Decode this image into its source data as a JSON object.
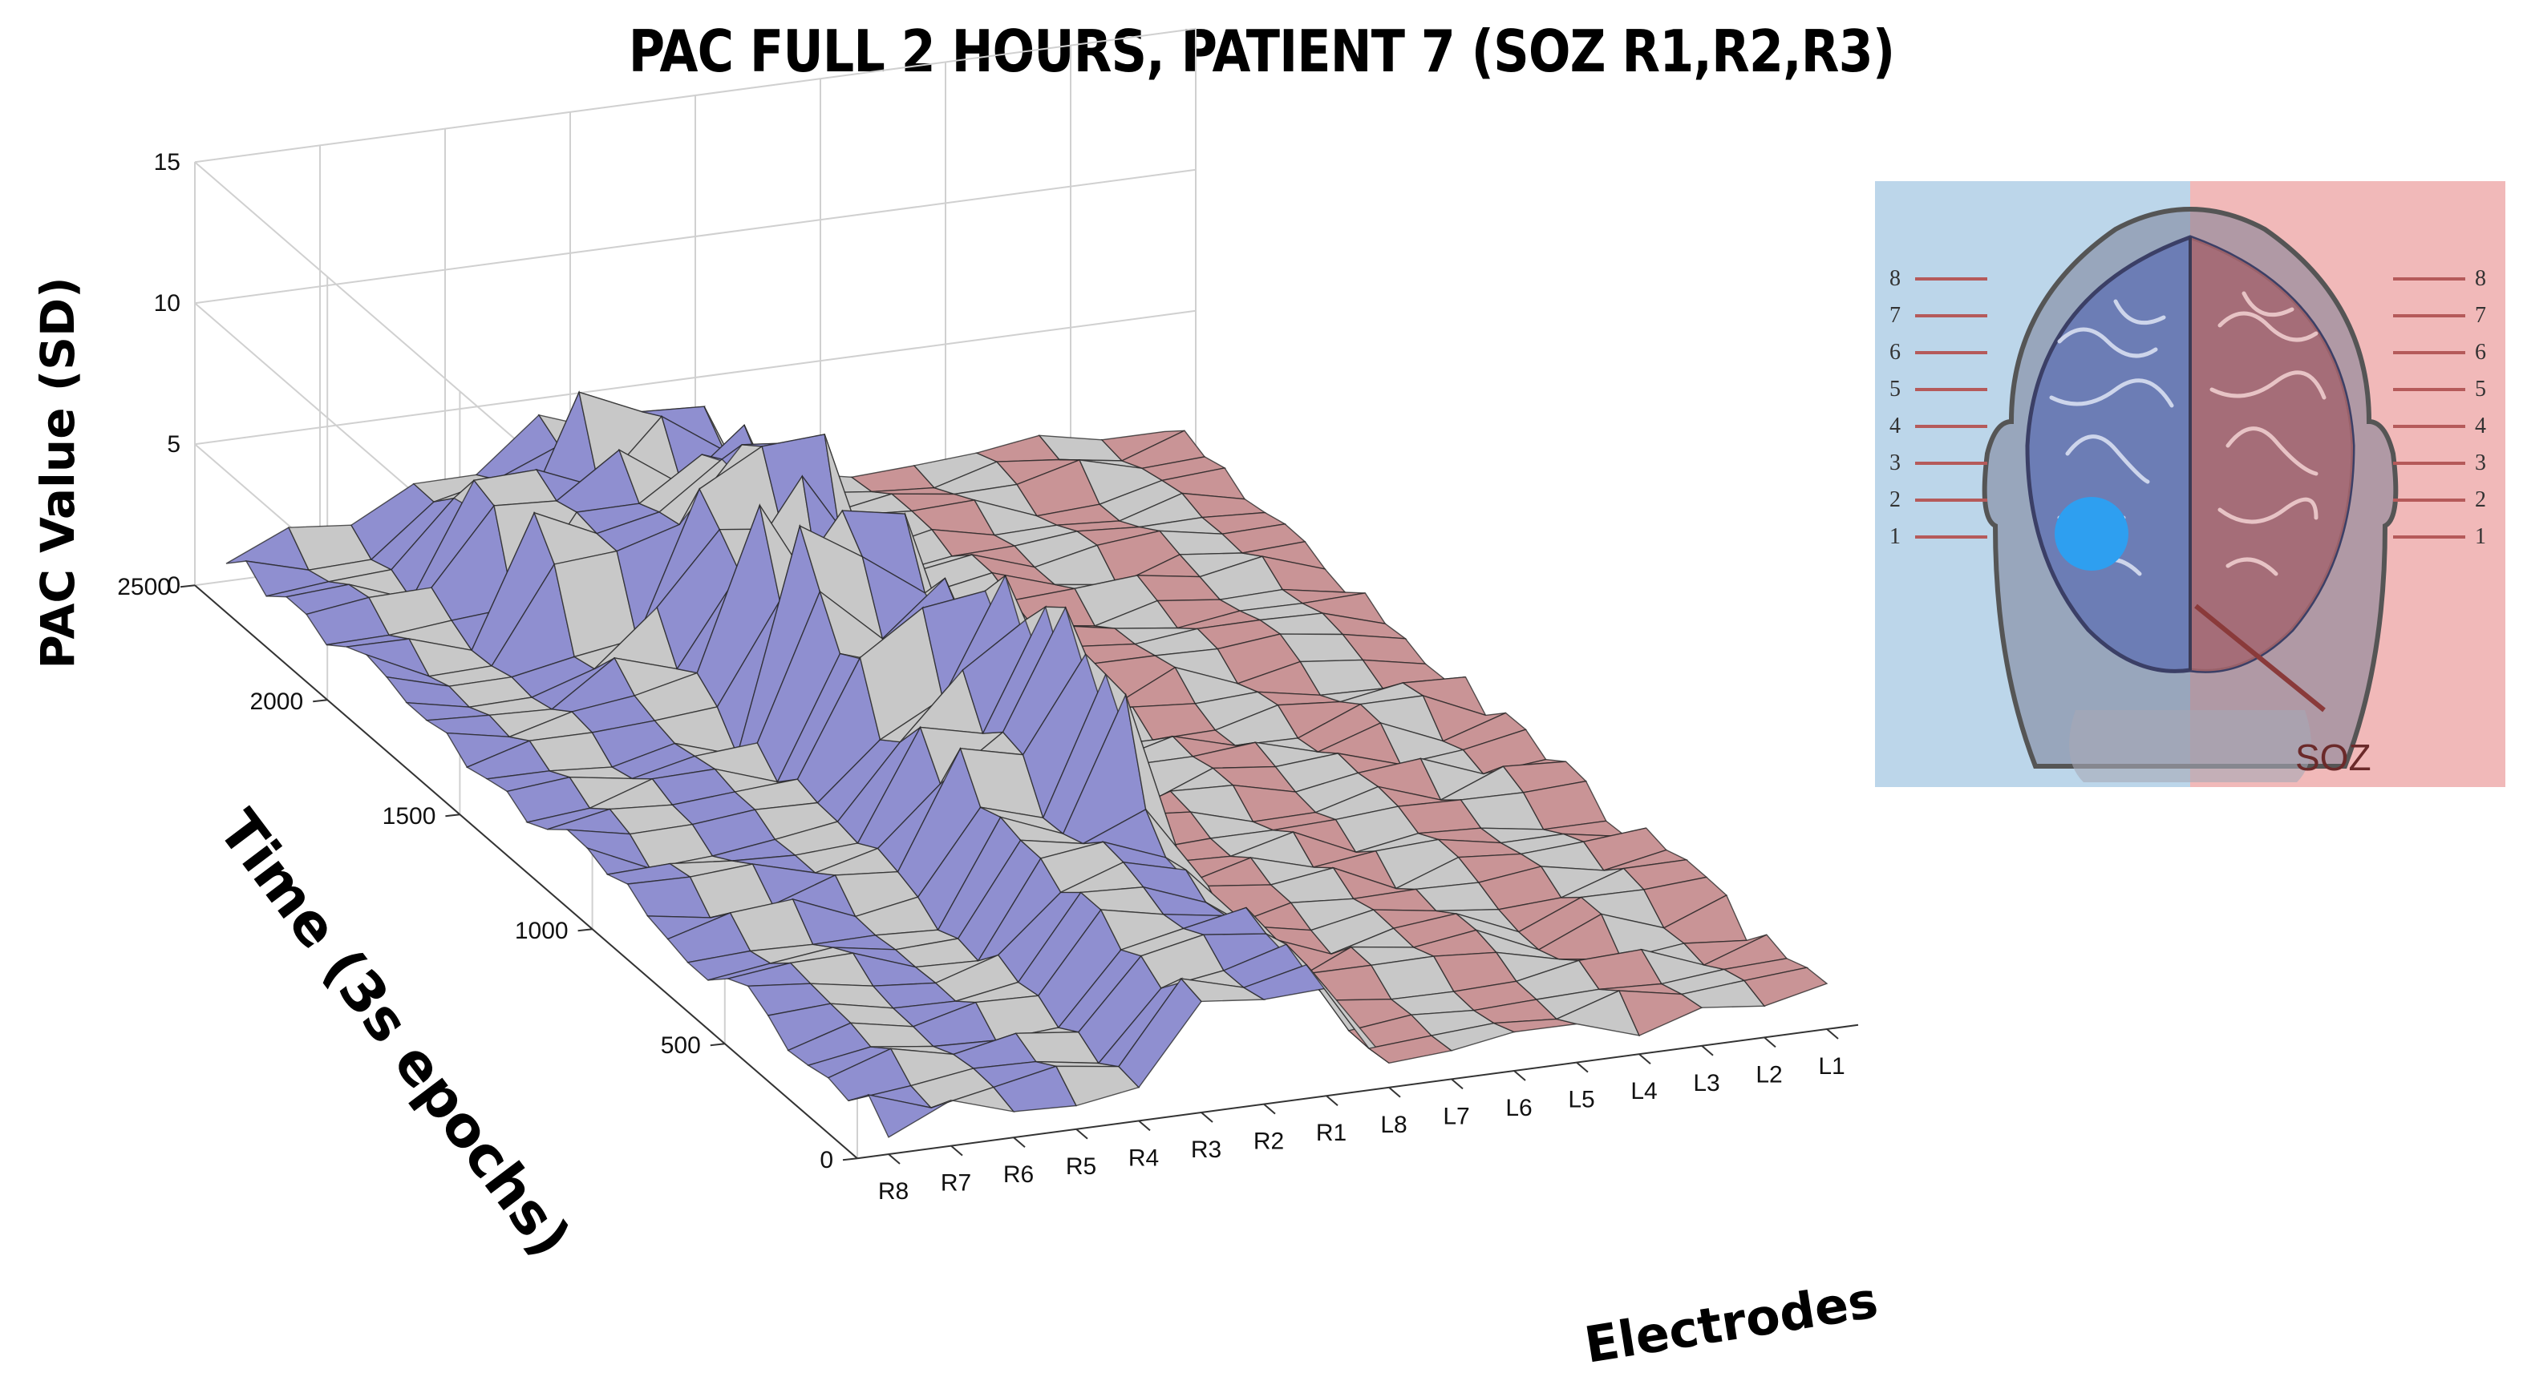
{
  "title": "PAC FULL 2 HOURS, PATIENT 7 (SOZ R1,R2,R3)",
  "chart_data": {
    "type": "surface3d",
    "title": "PAC FULL 2 HOURS, PATIENT 7 (SOZ R1,R2,R3)",
    "xlabel": "Electrodes",
    "ylabel": "Time (3s epochs)",
    "zlabel": "PAC Value (SD)",
    "electrodes": [
      "R8",
      "R7",
      "R6",
      "R5",
      "R4",
      "R3",
      "R2",
      "R1",
      "L8",
      "L7",
      "L6",
      "L5",
      "L4",
      "L3",
      "L2",
      "L1"
    ],
    "time_ticks": [
      0,
      500,
      1000,
      1500,
      2000,
      2500
    ],
    "z_ticks": [
      0,
      5,
      10,
      15
    ],
    "ylim": [
      0,
      2500
    ],
    "zlim": [
      0,
      15
    ],
    "grid": true,
    "stripe_colors": {
      "right_hemisphere": "#8f8fd0",
      "left_hemisphere": "#c99496",
      "alternate": "#c8c8c8"
    },
    "soz_electrodes": [
      "R1",
      "R2",
      "R3"
    ]
  },
  "inset": {
    "labels_left": [
      "8",
      "7",
      "6",
      "5",
      "4",
      "3",
      "2",
      "1"
    ],
    "labels_right": [
      "8",
      "7",
      "6",
      "5",
      "4",
      "3",
      "2",
      "1"
    ],
    "soz_label": "SOZ",
    "colors": {
      "left_bg": "#bcd6ea",
      "right_bg": "#f1b9b9",
      "marker": "#2e9ff0"
    }
  }
}
